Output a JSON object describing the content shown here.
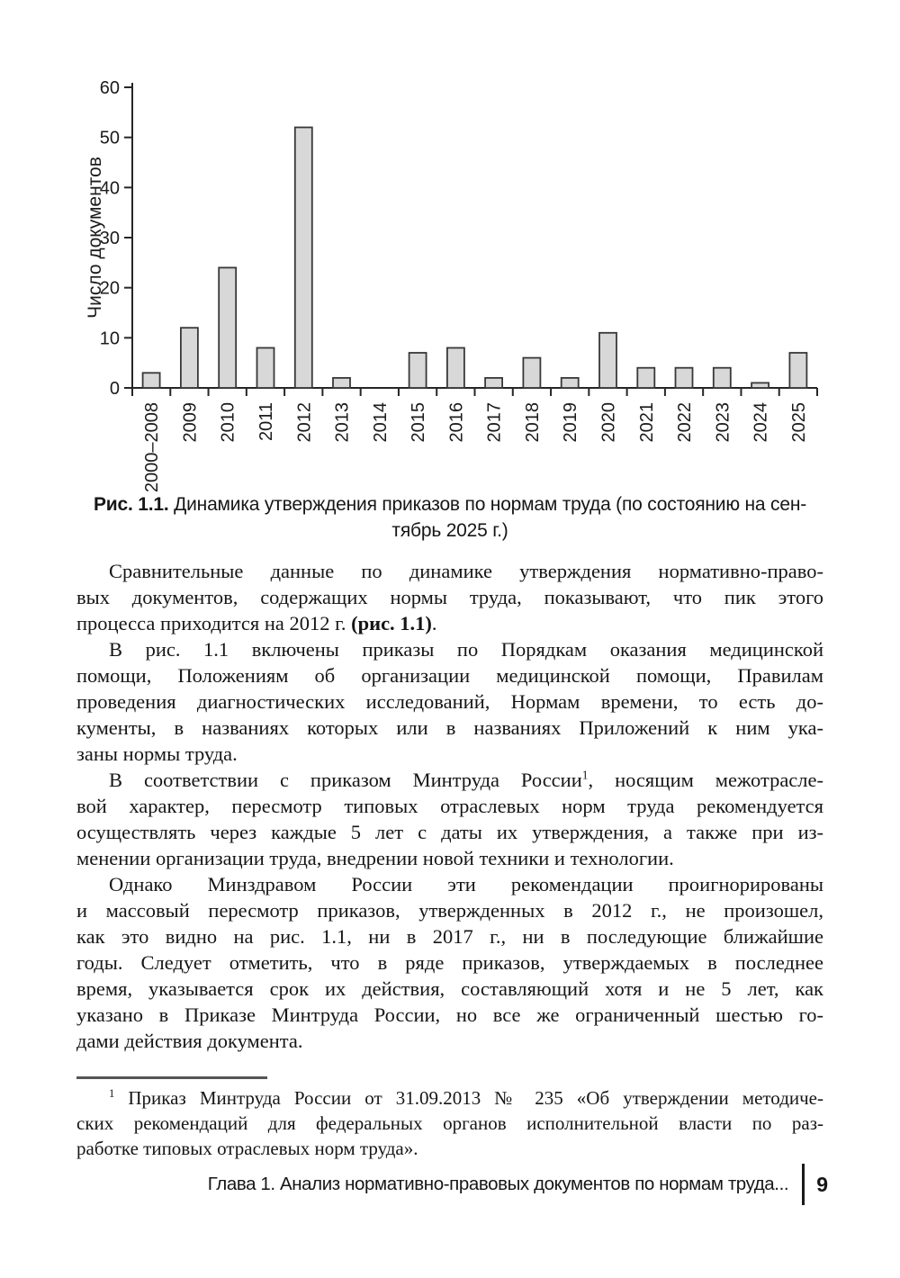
{
  "chart_data": {
    "type": "bar",
    "title": "",
    "xlabel": "",
    "ylabel": "Число документов",
    "categories": [
      "2000–2008",
      "2009",
      "2010",
      "2011",
      "2012",
      "2013",
      "2014",
      "2015",
      "2016",
      "2017",
      "2018",
      "2019",
      "2020",
      "2021",
      "2022",
      "2023",
      "2024",
      "2025"
    ],
    "values": [
      3,
      12,
      24,
      8,
      52,
      2,
      0,
      7,
      8,
      2,
      6,
      2,
      11,
      4,
      4,
      4,
      1,
      7
    ],
    "ylim": [
      0,
      60
    ],
    "yticks": [
      0,
      10,
      20,
      30,
      40,
      50,
      60
    ],
    "ytick_step": 10,
    "grid": false,
    "legend": false,
    "x_labels_rotated": true,
    "bar_fill": "#d8d8d8",
    "bar_stroke": "#383838",
    "axis_color": "#262626",
    "text_color": "#1b1b1b"
  },
  "figure": {
    "caption_label": "Рис. 1.1.",
    "caption_line1_rest": " Динамика утверждения приказов по нормам труда (по состоянию на сен-",
    "caption_line2": "тябрь 2025 г.)"
  },
  "body": {
    "paragraphs": [
      {
        "lines": [
          {
            "indent": true,
            "segments": [
              {
                "text": "Сравнительные данные по динамике утверждения нормативно-право-"
              }
            ]
          },
          {
            "segments": [
              {
                "text": "вых документов, содержащих нормы труда, показывают, что пик этого"
              }
            ]
          },
          {
            "last": true,
            "segments": [
              {
                "text": "процесса приходится на 2012 г. "
              },
              {
                "text": "(рис. 1.1)",
                "bold": true
              },
              {
                "text": "."
              }
            ]
          }
        ]
      },
      {
        "lines": [
          {
            "indent": true,
            "segments": [
              {
                "text": "В рис. 1.1 включены приказы по Порядкам оказания медицинской"
              }
            ]
          },
          {
            "segments": [
              {
                "text": "помощи, Положениям об организации медицинской помощи, Правилам"
              }
            ]
          },
          {
            "segments": [
              {
                "text": "проведения диагностических исследований, Нормам времени, то есть до-"
              }
            ]
          },
          {
            "segments": [
              {
                "text": "кументы, в названиях которых или в названиях Приложений к ним ука-"
              }
            ]
          },
          {
            "last": true,
            "segments": [
              {
                "text": "заны нормы труда."
              }
            ]
          }
        ]
      },
      {
        "lines": [
          {
            "indent": true,
            "segments": [
              {
                "text": "В соответствии с приказом Минтруда России"
              },
              {
                "text": "1",
                "sup": true
              },
              {
                "text": ", носящим межотрасле-"
              }
            ]
          },
          {
            "segments": [
              {
                "text": "вой характер, пересмотр типовых отраслевых норм труда рекомендуется"
              }
            ]
          },
          {
            "segments": [
              {
                "text": "осуществлять через каждые 5 лет с даты их утверждения, а также при из-"
              }
            ]
          },
          {
            "last": true,
            "segments": [
              {
                "text": "менении организации труда, внедрении новой техники и технологии."
              }
            ]
          }
        ]
      },
      {
        "lines": [
          {
            "indent": true,
            "segments": [
              {
                "text": "Однако Минздравом России эти рекомендации проигнорированы"
              }
            ]
          },
          {
            "segments": [
              {
                "text": "и массовый пересмотр приказов, утвержденных в 2012 г., не произошел,"
              }
            ]
          },
          {
            "segments": [
              {
                "text": "как это видно на рис. 1.1, ни в 2017 г., ни в последующие ближайшие"
              }
            ]
          },
          {
            "segments": [
              {
                "text": "годы. Следует отметить, что в ряде приказов, утверждаемых в последнее"
              }
            ]
          },
          {
            "segments": [
              {
                "text": "время, указывается срок их действия, составляющий хотя и не 5 лет, как"
              }
            ]
          },
          {
            "segments": [
              {
                "text": "указано в Приказе Минтруда России, но все же ограниченный шестью го-"
              }
            ]
          },
          {
            "last": true,
            "segments": [
              {
                "text": "дами действия документа."
              }
            ]
          }
        ]
      }
    ]
  },
  "footnote": {
    "lines": [
      {
        "indent": true,
        "segments": [
          {
            "text": "1",
            "sup": true
          },
          {
            "text": " Приказ Минтруда России от 31.09.2013 № 235 «Об утверждении методиче-"
          }
        ]
      },
      {
        "segments": [
          {
            "text": "ских рекомендаций для федеральных органов исполнительной власти по раз-"
          }
        ]
      },
      {
        "last": true,
        "segments": [
          {
            "text": "работке типовых отраслевых норм труда»."
          }
        ]
      }
    ]
  },
  "footer": {
    "running_title": "Глава 1. Анализ нормативно-правовых документов по нормам труда...",
    "page_number": "9"
  }
}
